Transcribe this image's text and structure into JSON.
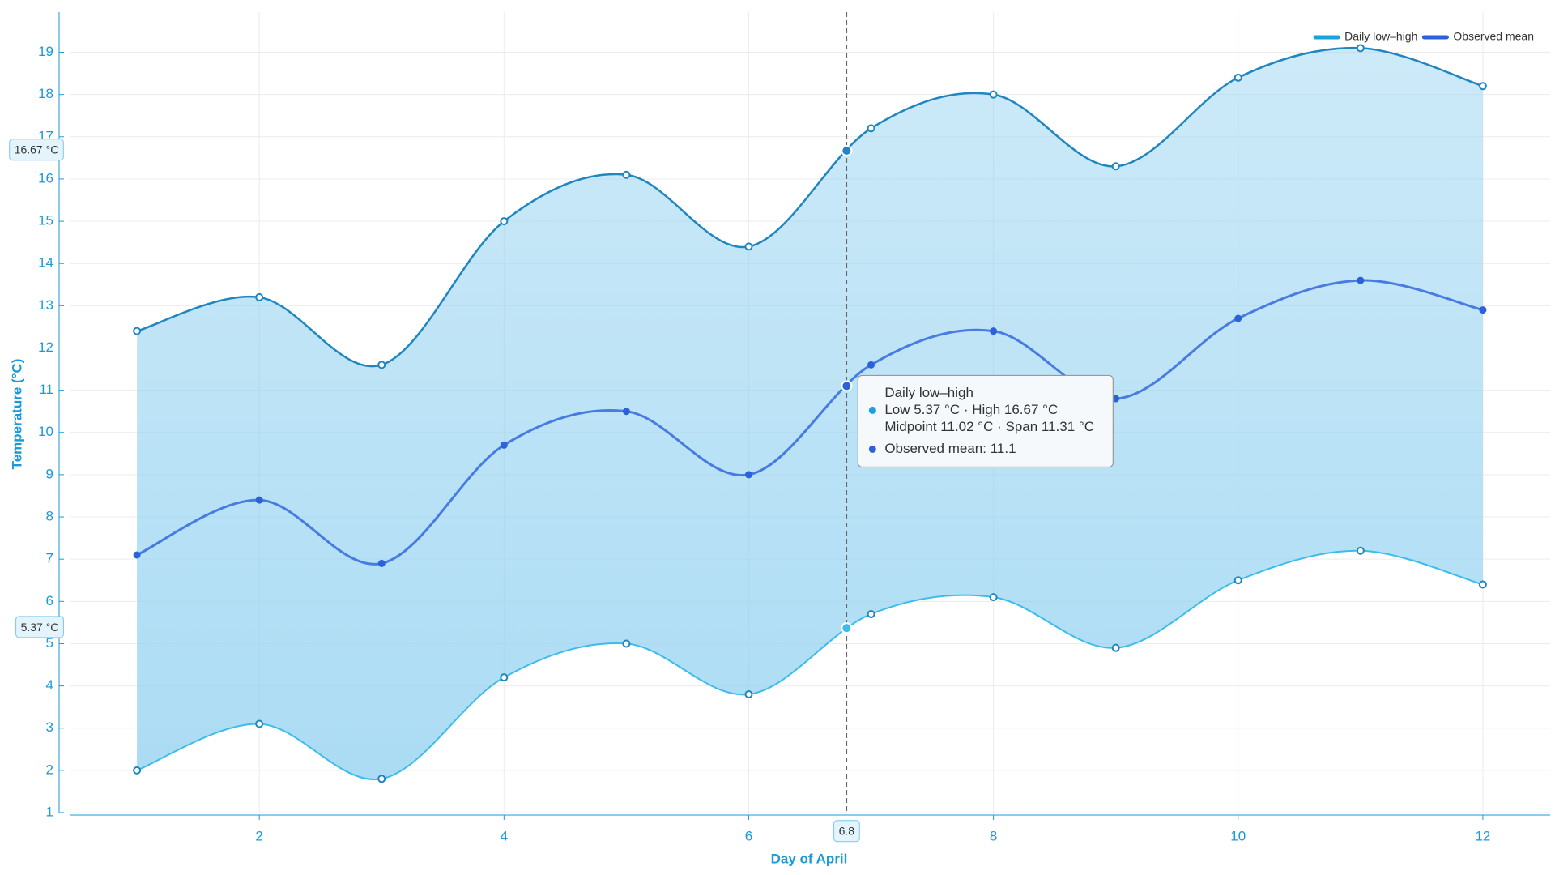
{
  "chart_data": {
    "type": "range-line",
    "x_label": "Day of April",
    "y_label": "Temperature (°C)",
    "x": [
      1,
      2,
      3,
      4,
      5,
      6,
      7,
      8,
      9,
      10,
      11,
      12
    ],
    "series": [
      {
        "name": "Daily low–high",
        "color": "#1ba1e2",
        "high_color": "#1f86c0",
        "low_color": "#3bbcec",
        "fill": "#8fd0f0",
        "low": [
          2.0,
          3.1,
          1.8,
          4.2,
          5.0,
          3.8,
          5.7,
          6.1,
          4.9,
          6.5,
          7.2,
          6.4
        ],
        "high": [
          12.4,
          13.2,
          11.6,
          15.0,
          16.1,
          14.4,
          17.2,
          18.0,
          16.3,
          18.4,
          19.1,
          18.2
        ]
      },
      {
        "name": "Observed mean",
        "color": "#2b62dc",
        "values": [
          7.1,
          8.4,
          6.9,
          9.7,
          10.5,
          9.0,
          11.6,
          12.4,
          10.8,
          12.7,
          13.6,
          12.9
        ]
      }
    ],
    "xlim": [
      0.45,
      12.55
    ],
    "ylim": [
      1,
      19.95
    ],
    "xticks": [
      2,
      4,
      6,
      8,
      10,
      12
    ],
    "yticks": [
      1,
      2,
      3,
      4,
      5,
      6,
      7,
      8,
      9,
      10,
      11,
      12,
      13,
      14,
      15,
      16,
      17,
      18,
      19
    ],
    "grid": true,
    "legend": "top-right",
    "crosshair": {
      "x": 6.8,
      "low": 5.37,
      "high": 16.67,
      "mean": 11.1,
      "high_label": "16.67 °C",
      "low_label": "5.37 °C",
      "tooltip": [
        "Daily low–high",
        "Low 5.37 °C · High 16.67 °C",
        "Midpoint 11.02 °C · Span 11.31 °C",
        "Observed mean: 11.1"
      ]
    }
  }
}
